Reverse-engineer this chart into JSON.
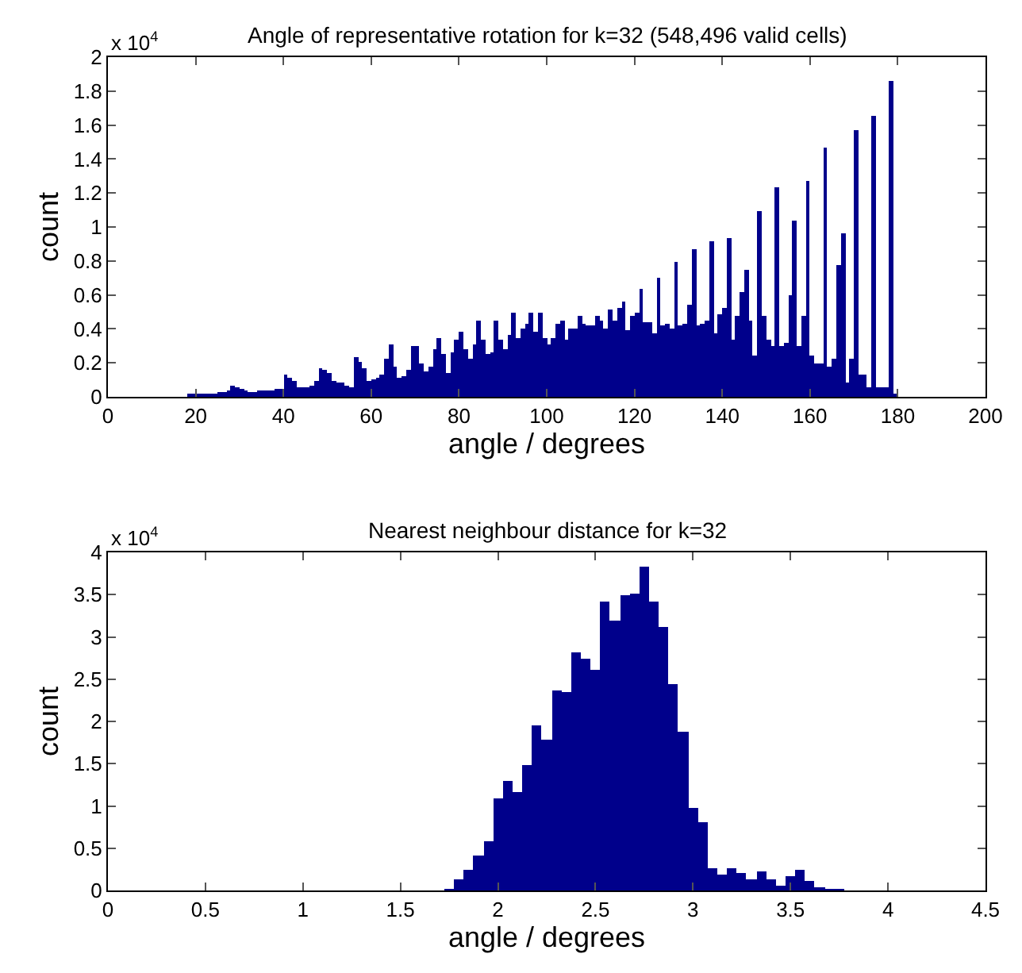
{
  "chart_data": [
    {
      "type": "histogram",
      "title": "Angle of representative rotation for k=32 (548,496 valid cells)",
      "xlabel": "angle / degrees",
      "ylabel": "count",
      "annotations": [
        "x 10$^{4}$"
      ],
      "color": "#00008b",
      "xlim": [
        0,
        200
      ],
      "xticks": [
        0,
        20,
        40,
        60,
        80,
        100,
        120,
        140,
        160,
        180,
        200
      ],
      "ylim": [
        0,
        2
      ],
      "yticks": [
        0,
        0.2,
        0.4,
        0.6,
        0.8,
        1,
        1.2,
        1.4,
        1.6,
        1.8,
        2
      ],
      "bins": [
        18,
        19,
        20,
        21,
        22,
        23,
        24,
        25,
        26,
        27,
        28,
        29,
        30,
        31,
        32,
        33,
        34,
        35,
        36,
        37,
        38,
        39,
        40,
        41,
        42,
        43,
        44,
        45,
        46,
        47,
        48,
        49,
        50,
        51,
        52,
        53,
        54,
        55,
        56,
        57,
        58,
        59,
        60,
        61,
        62,
        63,
        64,
        65,
        66,
        67,
        68,
        69,
        70,
        71,
        72,
        73,
        74,
        75,
        76,
        77,
        78,
        79,
        80,
        81,
        82,
        83,
        84,
        85,
        86,
        87,
        88,
        89,
        90,
        91,
        92,
        93,
        94,
        95,
        96,
        97,
        98,
        99,
        100,
        101,
        102,
        103,
        104,
        105,
        106,
        107,
        108,
        109,
        110,
        111,
        112,
        113,
        114,
        115,
        116,
        117,
        118,
        119,
        120,
        121,
        122,
        123,
        124,
        125,
        126,
        127,
        128,
        129,
        130,
        131,
        132,
        133,
        134,
        135,
        136,
        137,
        138,
        139,
        140,
        141,
        142,
        143,
        144,
        145,
        146,
        147,
        148,
        149,
        150,
        151,
        152,
        153,
        154,
        155,
        156,
        157,
        158,
        159,
        160,
        161,
        162,
        163,
        164,
        165,
        166,
        167,
        168,
        169,
        170,
        171,
        172,
        173,
        174,
        175,
        176,
        177,
        178,
        179,
        180
      ],
      "values": [
        0.02,
        0.02,
        0.02,
        0.02,
        0.02,
        0.02,
        0.02,
        0.03,
        0.03,
        0.04,
        0.07,
        0.06,
        0.05,
        0.04,
        0.03,
        0.03,
        0.04,
        0.04,
        0.04,
        0.04,
        0.05,
        0.05,
        0.13,
        0.11,
        0.09,
        0.06,
        0.06,
        0.06,
        0.07,
        0.09,
        0.17,
        0.16,
        0.14,
        0.09,
        0.08,
        0.08,
        0.07,
        0.06,
        0.23,
        0.21,
        0.17,
        0.09,
        0.1,
        0.11,
        0.13,
        0.22,
        0.31,
        0.18,
        0.11,
        0.12,
        0.16,
        0.3,
        0.3,
        0.2,
        0.15,
        0.18,
        0.28,
        0.35,
        0.25,
        0.14,
        0.26,
        0.34,
        0.38,
        0.28,
        0.22,
        0.31,
        0.45,
        0.34,
        0.25,
        0.26,
        0.45,
        0.34,
        0.28,
        0.36,
        0.5,
        0.35,
        0.4,
        0.43,
        0.5,
        0.38,
        0.5,
        0.35,
        0.31,
        0.35,
        0.43,
        0.45,
        0.34,
        0.4,
        0.4,
        0.48,
        0.43,
        0.42,
        0.42,
        0.48,
        0.45,
        0.4,
        0.51,
        0.45,
        0.52,
        0.56,
        0.39,
        0.48,
        0.5,
        0.64,
        0.44,
        0.44,
        0.37,
        0.7,
        0.42,
        0.43,
        0.4,
        0.79,
        0.42,
        0.43,
        0.54,
        0.87,
        0.42,
        0.43,
        0.45,
        0.92,
        0.37,
        0.49,
        0.52,
        0.93,
        0.34,
        0.48,
        0.62,
        0.75,
        0.45,
        0.24,
        1.09,
        0.48,
        0.34,
        0.3,
        1.23,
        0.3,
        0.32,
        0.6,
        1.04,
        0.3,
        0.48,
        1.27,
        0.24,
        0.2,
        0.2,
        1.47,
        0.18,
        0.22,
        0.78,
        0.96,
        0.08,
        0.22,
        1.57,
        0.13,
        0.13,
        0.06,
        1.65,
        0.06,
        0.06,
        0.06,
        1.86,
        0.01
      ]
    },
    {
      "type": "histogram",
      "title": "Nearest neighbour distance for k=32",
      "xlabel": "angle / degrees",
      "ylabel": "count",
      "annotations": [
        "x 10$^{4}$"
      ],
      "color": "#00008b",
      "xlim": [
        0,
        4.5
      ],
      "xticks": [
        0,
        0.5,
        1,
        1.5,
        2,
        2.5,
        3,
        3.5,
        4,
        4.5
      ],
      "ylim": [
        0,
        4
      ],
      "yticks": [
        0,
        0.5,
        1,
        1.5,
        2,
        2.5,
        3,
        3.5,
        4
      ],
      "bins": [
        1.725,
        1.775,
        1.825,
        1.875,
        1.925,
        1.975,
        2.025,
        2.075,
        2.125,
        2.175,
        2.225,
        2.275,
        2.325,
        2.375,
        2.425,
        2.475,
        2.525,
        2.575,
        2.625,
        2.675,
        2.725,
        2.775,
        2.825,
        2.875,
        2.925,
        2.975,
        3.025,
        3.075,
        3.125,
        3.175,
        3.225,
        3.275,
        3.325,
        3.375,
        3.425,
        3.475,
        3.525,
        3.575,
        3.625,
        3.675,
        3.725,
        3.775
      ],
      "values": [
        0.01,
        0.14,
        0.25,
        0.41,
        0.58,
        1.09,
        1.3,
        1.16,
        1.48,
        1.95,
        1.78,
        2.37,
        2.34,
        2.81,
        2.74,
        2.61,
        3.41,
        3.2,
        3.49,
        3.52,
        3.83,
        3.42,
        3.11,
        2.45,
        1.88,
        0.97,
        0.8,
        0.26,
        0.19,
        0.27,
        0.2,
        0.14,
        0.23,
        0.13,
        0.05,
        0.16,
        0.24,
        0.12,
        0.03,
        0.01,
        0.01
      ]
    }
  ]
}
